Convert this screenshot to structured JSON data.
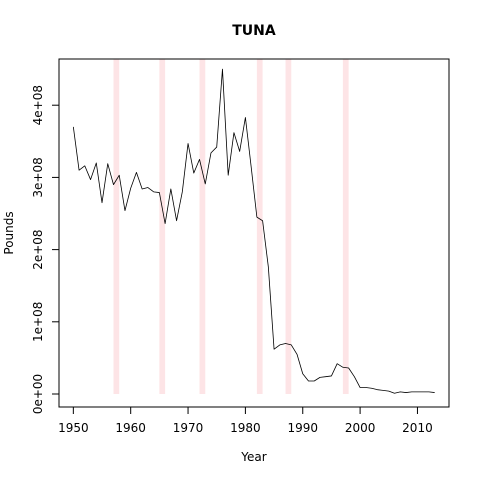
{
  "chart_data": {
    "type": "line",
    "title": "TUNA",
    "xlabel": "Year",
    "ylabel": "Pounds",
    "xlim": [
      1947.5,
      2015.5
    ],
    "ylim": [
      -18000000,
      464000000
    ],
    "x_ticks": [
      1950,
      1960,
      1970,
      1980,
      1990,
      2000,
      2010
    ],
    "x_tick_labels": [
      "1950",
      "1960",
      "1970",
      "1980",
      "1990",
      "2000",
      "2010"
    ],
    "y_ticks": [
      0,
      100000000,
      200000000,
      300000000,
      400000000
    ],
    "y_tick_labels": [
      "0e+00",
      "1e+08",
      "2e+08",
      "3e+08",
      "4e+08"
    ],
    "grid": false,
    "shaded_periods": [
      [
        1957,
        1958
      ],
      [
        1965,
        1966
      ],
      [
        1972,
        1973
      ],
      [
        1982,
        1983
      ],
      [
        1987,
        1988
      ],
      [
        1997,
        1998
      ]
    ],
    "band_color": "#fde4e6",
    "line_color": "#000000",
    "series": [
      {
        "x": [
          1950,
          1951,
          1952,
          1953,
          1954,
          1955,
          1956,
          1957,
          1958,
          1959,
          1960,
          1961,
          1962,
          1963,
          1964,
          1965,
          1966,
          1967,
          1968,
          1969,
          1970,
          1971,
          1972,
          1973,
          1974,
          1975,
          1976,
          1977,
          1978,
          1979,
          1980,
          1981,
          1982,
          1983,
          1984,
          1985,
          1986,
          1987,
          1988,
          1989,
          1990,
          1991,
          1992,
          1993,
          1994,
          1995,
          1996,
          1997,
          1998,
          1999,
          2000,
          2001,
          2002,
          2003,
          2004,
          2005,
          2006,
          2007,
          2008,
          2009,
          2010,
          2011,
          2012,
          2013
        ],
        "values": [
          370000000,
          310000000,
          316000000,
          297000000,
          320000000,
          265000000,
          319000000,
          290000000,
          303000000,
          254000000,
          285000000,
          307000000,
          284000000,
          286000000,
          280000000,
          279000000,
          236000000,
          284000000,
          240000000,
          280000000,
          347000000,
          306000000,
          325000000,
          291000000,
          334000000,
          342000000,
          450000000,
          303000000,
          362000000,
          336000000,
          383000000,
          315000000,
          245000000,
          240000000,
          176000000,
          62000000,
          68000000,
          70000000,
          68000000,
          55000000,
          28000000,
          18000000,
          18000000,
          23000000,
          24000000,
          25000000,
          42000000,
          37000000,
          36000000,
          24000000,
          9000000,
          9000000,
          8000000,
          6000000,
          5000000,
          4000000,
          1000000,
          3000000,
          2000000,
          3000000,
          3000000,
          3000000,
          3000000,
          2000000
        ]
      }
    ]
  }
}
